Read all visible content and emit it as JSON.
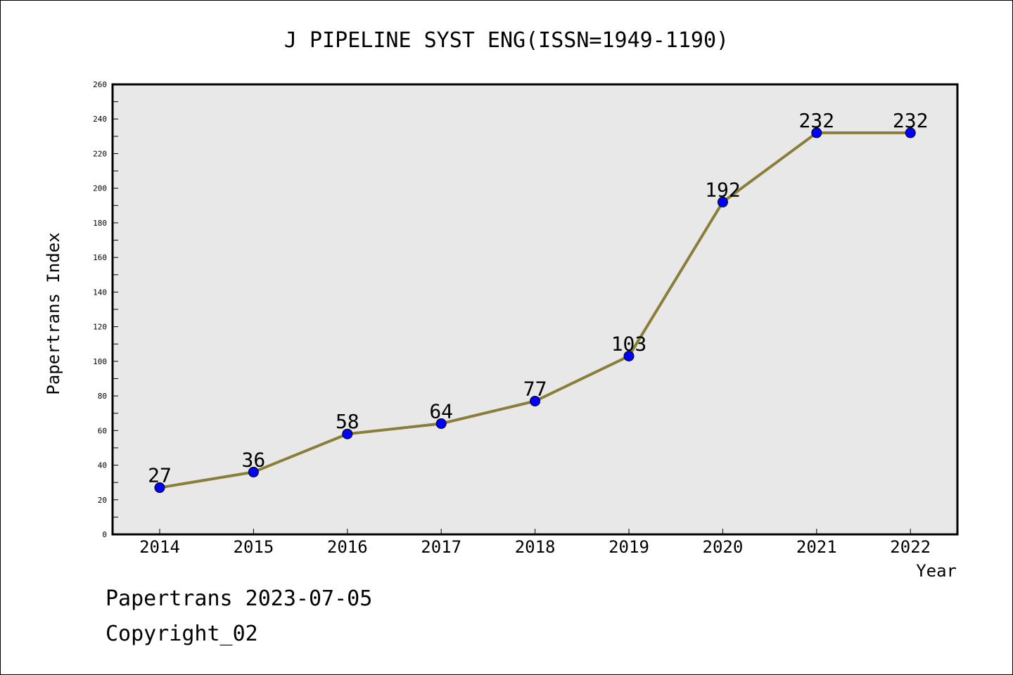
{
  "chart_data": {
    "type": "line",
    "title": "J PIPELINE SYST ENG(ISSN=1949-1190)",
    "xlabel": "Year",
    "ylabel": "Papertrans Index",
    "categories": [
      "2014",
      "2015",
      "2016",
      "2017",
      "2018",
      "2019",
      "2020",
      "2021",
      "2022"
    ],
    "series": [
      {
        "values": [
          27,
          36,
          58,
          64,
          77,
          103,
          192,
          232,
          232
        ]
      }
    ],
    "ylim": [
      0,
      260
    ],
    "yticks": [
      0,
      20,
      40,
      60,
      80,
      100,
      120,
      140,
      160,
      180,
      200,
      220,
      240,
      260
    ],
    "grid": false,
    "data_labels": true,
    "colors": {
      "line": "#8B7D3A",
      "marker": "#0000FF",
      "plot_background": "#E8E8E8"
    }
  },
  "footer": {
    "line1": "Papertrans 2023-07-05",
    "line2": "Copyright_02"
  }
}
